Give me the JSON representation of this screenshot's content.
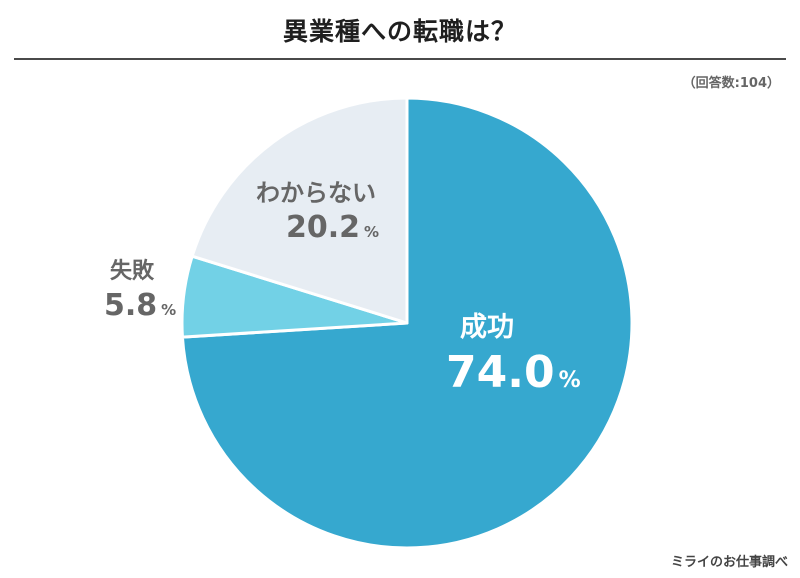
{
  "title": "異業種への転職は？",
  "sample": "（回答数:104）",
  "source": "ミライのお仕事調べ",
  "percent_sign": "%",
  "colors": {
    "success": "#36a8cf",
    "failure": "#72d1e6",
    "unknown": "#e7edf3",
    "label_dark": "#666666",
    "label_light": "#ffffff"
  },
  "chart_data": {
    "type": "pie",
    "title": "異業種への転職は？",
    "start_angle_deg": 0,
    "direction": "clockwise",
    "slices": [
      {
        "key": "success",
        "label": "成功",
        "value": 74.0,
        "display": "74.0"
      },
      {
        "key": "failure",
        "label": "失敗",
        "value": 5.8,
        "display": "5.8"
      },
      {
        "key": "unknown",
        "label": "わからない",
        "value": 20.2,
        "display": "20.2"
      }
    ]
  }
}
